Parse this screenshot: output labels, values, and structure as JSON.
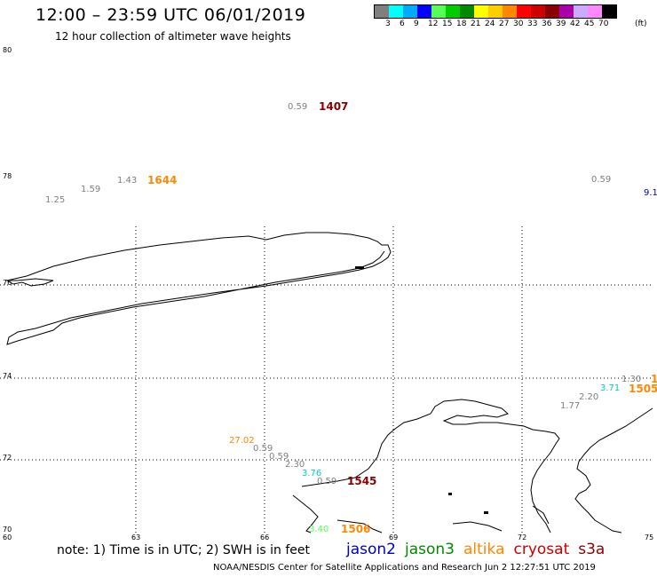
{
  "header": {
    "title": "12:00 – 23:59 UTC 06/01/2019",
    "subtitle": "12 hour collection of altimeter wave heights"
  },
  "color_scale": {
    "colors": [
      "#7f7f7f",
      "#00ffff",
      "#00aaff",
      "#0000ff",
      "#55ff55",
      "#00cc00",
      "#008800",
      "#ffff00",
      "#ffcc00",
      "#ff8800",
      "#ff0000",
      "#cc0000",
      "#880000",
      "#aa00aa",
      "#ccaaff",
      "#ff88ff",
      "#000000"
    ],
    "labels": [
      "3",
      "6",
      "9",
      "12",
      "15",
      "18",
      "21",
      "24",
      "27",
      "30",
      "33",
      "36",
      "39",
      "42",
      "45",
      "70"
    ],
    "unit": "(ft)"
  },
  "axes": {
    "lat_labels": [
      "80",
      "78",
      "76",
      "74",
      "72",
      "70"
    ],
    "lon_labels": [
      "60",
      "63",
      "66",
      "69",
      "72",
      "75"
    ]
  },
  "observations": [
    {
      "text": "0.59",
      "color": "#7f7f7f"
    },
    {
      "text": "1407",
      "color": "#880000",
      "bold": true
    },
    {
      "text": "1.43",
      "color": "#7f7f7f"
    },
    {
      "text": "1644",
      "color": "#ff8800",
      "bold": true
    },
    {
      "text": "1.59",
      "color": "#7f7f7f"
    },
    {
      "text": "1.25",
      "color": "#7f7f7f"
    },
    {
      "text": "0.59",
      "color": "#7f7f7f"
    },
    {
      "text": "9.1",
      "color": "#0000cc"
    },
    {
      "text": "1.30",
      "color": "#7f7f7f"
    },
    {
      "text": "1",
      "color": "#ff8800",
      "bold": true
    },
    {
      "text": "3.71",
      "color": "#00cccc"
    },
    {
      "text": "1505",
      "color": "#ff8800",
      "bold": true
    },
    {
      "text": "2.20",
      "color": "#7f7f7f"
    },
    {
      "text": "1.77",
      "color": "#7f7f7f"
    },
    {
      "text": "27.02",
      "color": "#ff8800"
    },
    {
      "text": "0.59",
      "color": "#7f7f7f"
    },
    {
      "text": "0.59",
      "color": "#7f7f7f"
    },
    {
      "text": "2.30",
      "color": "#7f7f7f"
    },
    {
      "text": "3.76",
      "color": "#00cccc"
    },
    {
      "text": "0.59",
      "color": "#7f7f7f"
    },
    {
      "text": "1545",
      "color": "#880000",
      "bold": true
    },
    {
      "text": "3.40",
      "color": "#55ff55"
    },
    {
      "text": "1506",
      "color": "#ff8800",
      "bold": true
    }
  ],
  "note": "note: 1) Time is in UTC; 2) SWH is in feet",
  "satellites": [
    {
      "name": "jason2",
      "color": "#0000cc"
    },
    {
      "name": "jason3",
      "color": "#008800"
    },
    {
      "name": "altika",
      "color": "#ff8800"
    },
    {
      "name": "cryosat",
      "color": "#cc0000"
    },
    {
      "name": "s3a",
      "color": "#880000"
    }
  ],
  "footer": "NOAA/NESDIS Center for Satellite Applications and Research    Jun  2 12:27:51 UTC 2019"
}
